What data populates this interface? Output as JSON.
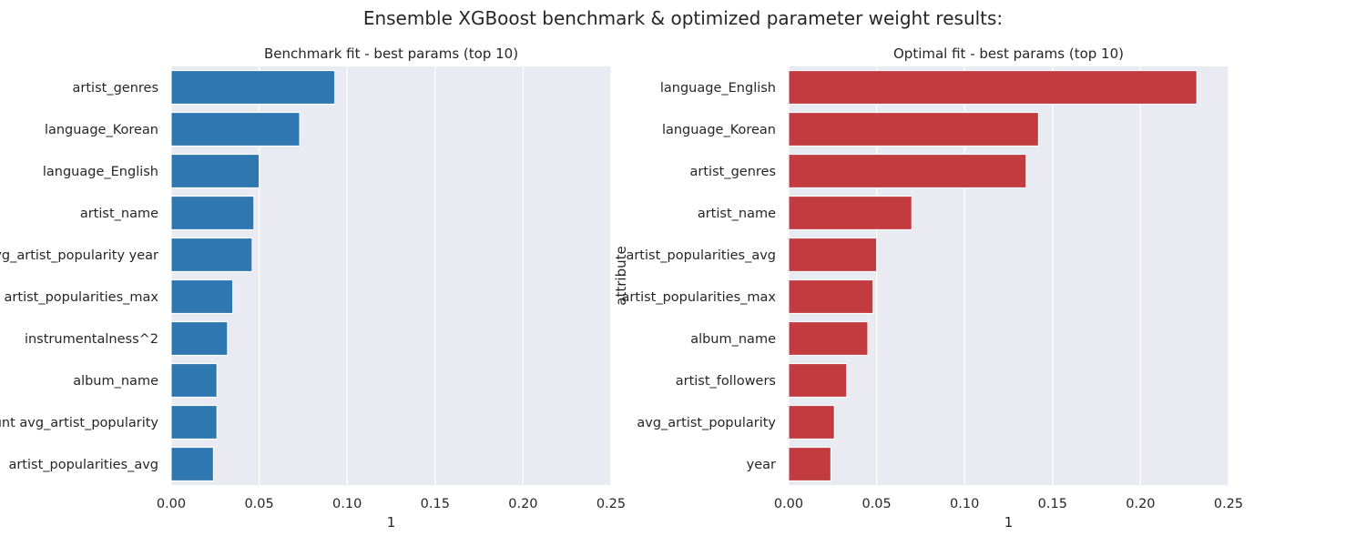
{
  "figure": {
    "suptitle": "Ensemble XGBoost benchmark & optimized parameter weight results:"
  },
  "colors": {
    "background": "#ffffff",
    "plot_area": "#eaeaf2",
    "grid": "#ffffff",
    "text": "#262626"
  },
  "chart_data": [
    {
      "type": "bar",
      "orientation": "horizontal",
      "title": "Benchmark fit - best params (top 10)",
      "xlabel": "1",
      "ylabel": "",
      "xlim": [
        0,
        0.25
      ],
      "xticks": [
        "0.00",
        "0.05",
        "0.10",
        "0.15",
        "0.20",
        "0.25"
      ],
      "grid": true,
      "bar_color": "#2e77b0",
      "categories": [
        "artist_genres",
        "language_Korean",
        "language_English",
        "artist_name",
        "avg_artist_popularity year",
        "artist_popularities_max",
        "instrumentalness^2",
        "album_name",
        "count avg_artist_popularity",
        "artist_popularities_avg"
      ],
      "values": [
        0.093,
        0.073,
        0.05,
        0.047,
        0.046,
        0.035,
        0.032,
        0.026,
        0.026,
        0.024
      ]
    },
    {
      "type": "bar",
      "orientation": "horizontal",
      "title": "Optimal fit - best params (top 10)",
      "xlabel": "1",
      "ylabel": "attribute",
      "xlim": [
        0,
        0.25
      ],
      "xticks": [
        "0.00",
        "0.05",
        "0.10",
        "0.15",
        "0.20",
        "0.25"
      ],
      "grid": true,
      "bar_color": "#c23b3f",
      "categories": [
        "language_English",
        "language_Korean",
        "artist_genres",
        "artist_name",
        "artist_popularities_avg",
        "artist_popularities_max",
        "album_name",
        "artist_followers",
        "avg_artist_popularity",
        "year"
      ],
      "values": [
        0.232,
        0.142,
        0.135,
        0.07,
        0.05,
        0.048,
        0.045,
        0.033,
        0.026,
        0.024
      ]
    }
  ]
}
